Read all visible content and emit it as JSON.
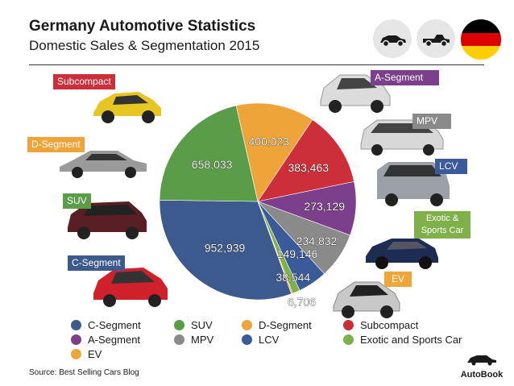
{
  "header": {
    "title": "Germany Automotive Statistics",
    "subtitle": "Domestic Sales & Segmentation 2015",
    "icons": [
      "sedan-icon",
      "pickup-icon",
      "germany-flag-icon"
    ]
  },
  "flag_colors": [
    "#000000",
    "#dd0000",
    "#ffce00"
  ],
  "chart_data": {
    "type": "pie",
    "title": "",
    "series": [
      {
        "name": "C-Segment",
        "value": 952939,
        "label": "952,939",
        "color": "#3d5a8e"
      },
      {
        "name": "SUV",
        "value": 658033,
        "label": "658,033",
        "color": "#5a9c48"
      },
      {
        "name": "D-Segment",
        "value": 400023,
        "label": "400,023",
        "color": "#efa43a"
      },
      {
        "name": "Subcompact",
        "value": 383463,
        "label": "383,463",
        "color": "#cc2e3a"
      },
      {
        "name": "A-Segment",
        "value": 273129,
        "label": "273,129",
        "color": "#7b3f8c"
      },
      {
        "name": "MPV",
        "value": 234832,
        "label": "234,832",
        "color": "#8a8a8a"
      },
      {
        "name": "LCV",
        "value": 149146,
        "label": "149,146",
        "color": "#3a5a99"
      },
      {
        "name": "Exotic and Sports Car",
        "value": 38544,
        "label": "38,544",
        "color": "#7fb04a"
      },
      {
        "name": "EV",
        "value": 6706,
        "label": "6,706",
        "color": "#f0a637"
      }
    ],
    "legend_position": "bottom"
  },
  "segment_tags": {
    "subcompact": "Subcompact",
    "d_segment": "D-Segment",
    "suv": "SUV",
    "c_segment": "C-Segment",
    "a_segment": "A-Segment",
    "mpv": "MPV",
    "lcv": "LCV",
    "exotic": "Exotic & Sports Car",
    "ev": "EV"
  },
  "legend": [
    {
      "label": "C-Segment",
      "color": "#3d5a8e"
    },
    {
      "label": "SUV",
      "color": "#5a9c48"
    },
    {
      "label": "D-Segment",
      "color": "#efa43a"
    },
    {
      "label": "Subcompact",
      "color": "#cc2e3a"
    },
    {
      "label": "A-Segment",
      "color": "#7b3f8c"
    },
    {
      "label": "MPV",
      "color": "#8a8a8a"
    },
    {
      "label": "LCV",
      "color": "#3a5a99"
    },
    {
      "label": "Exotic and Sports Car",
      "color": "#7fb04a"
    },
    {
      "label": "EV",
      "color": "#f0a637"
    }
  ],
  "footer": {
    "source": "Source:  Best Selling Cars Blog",
    "brand": "AutoBook"
  }
}
